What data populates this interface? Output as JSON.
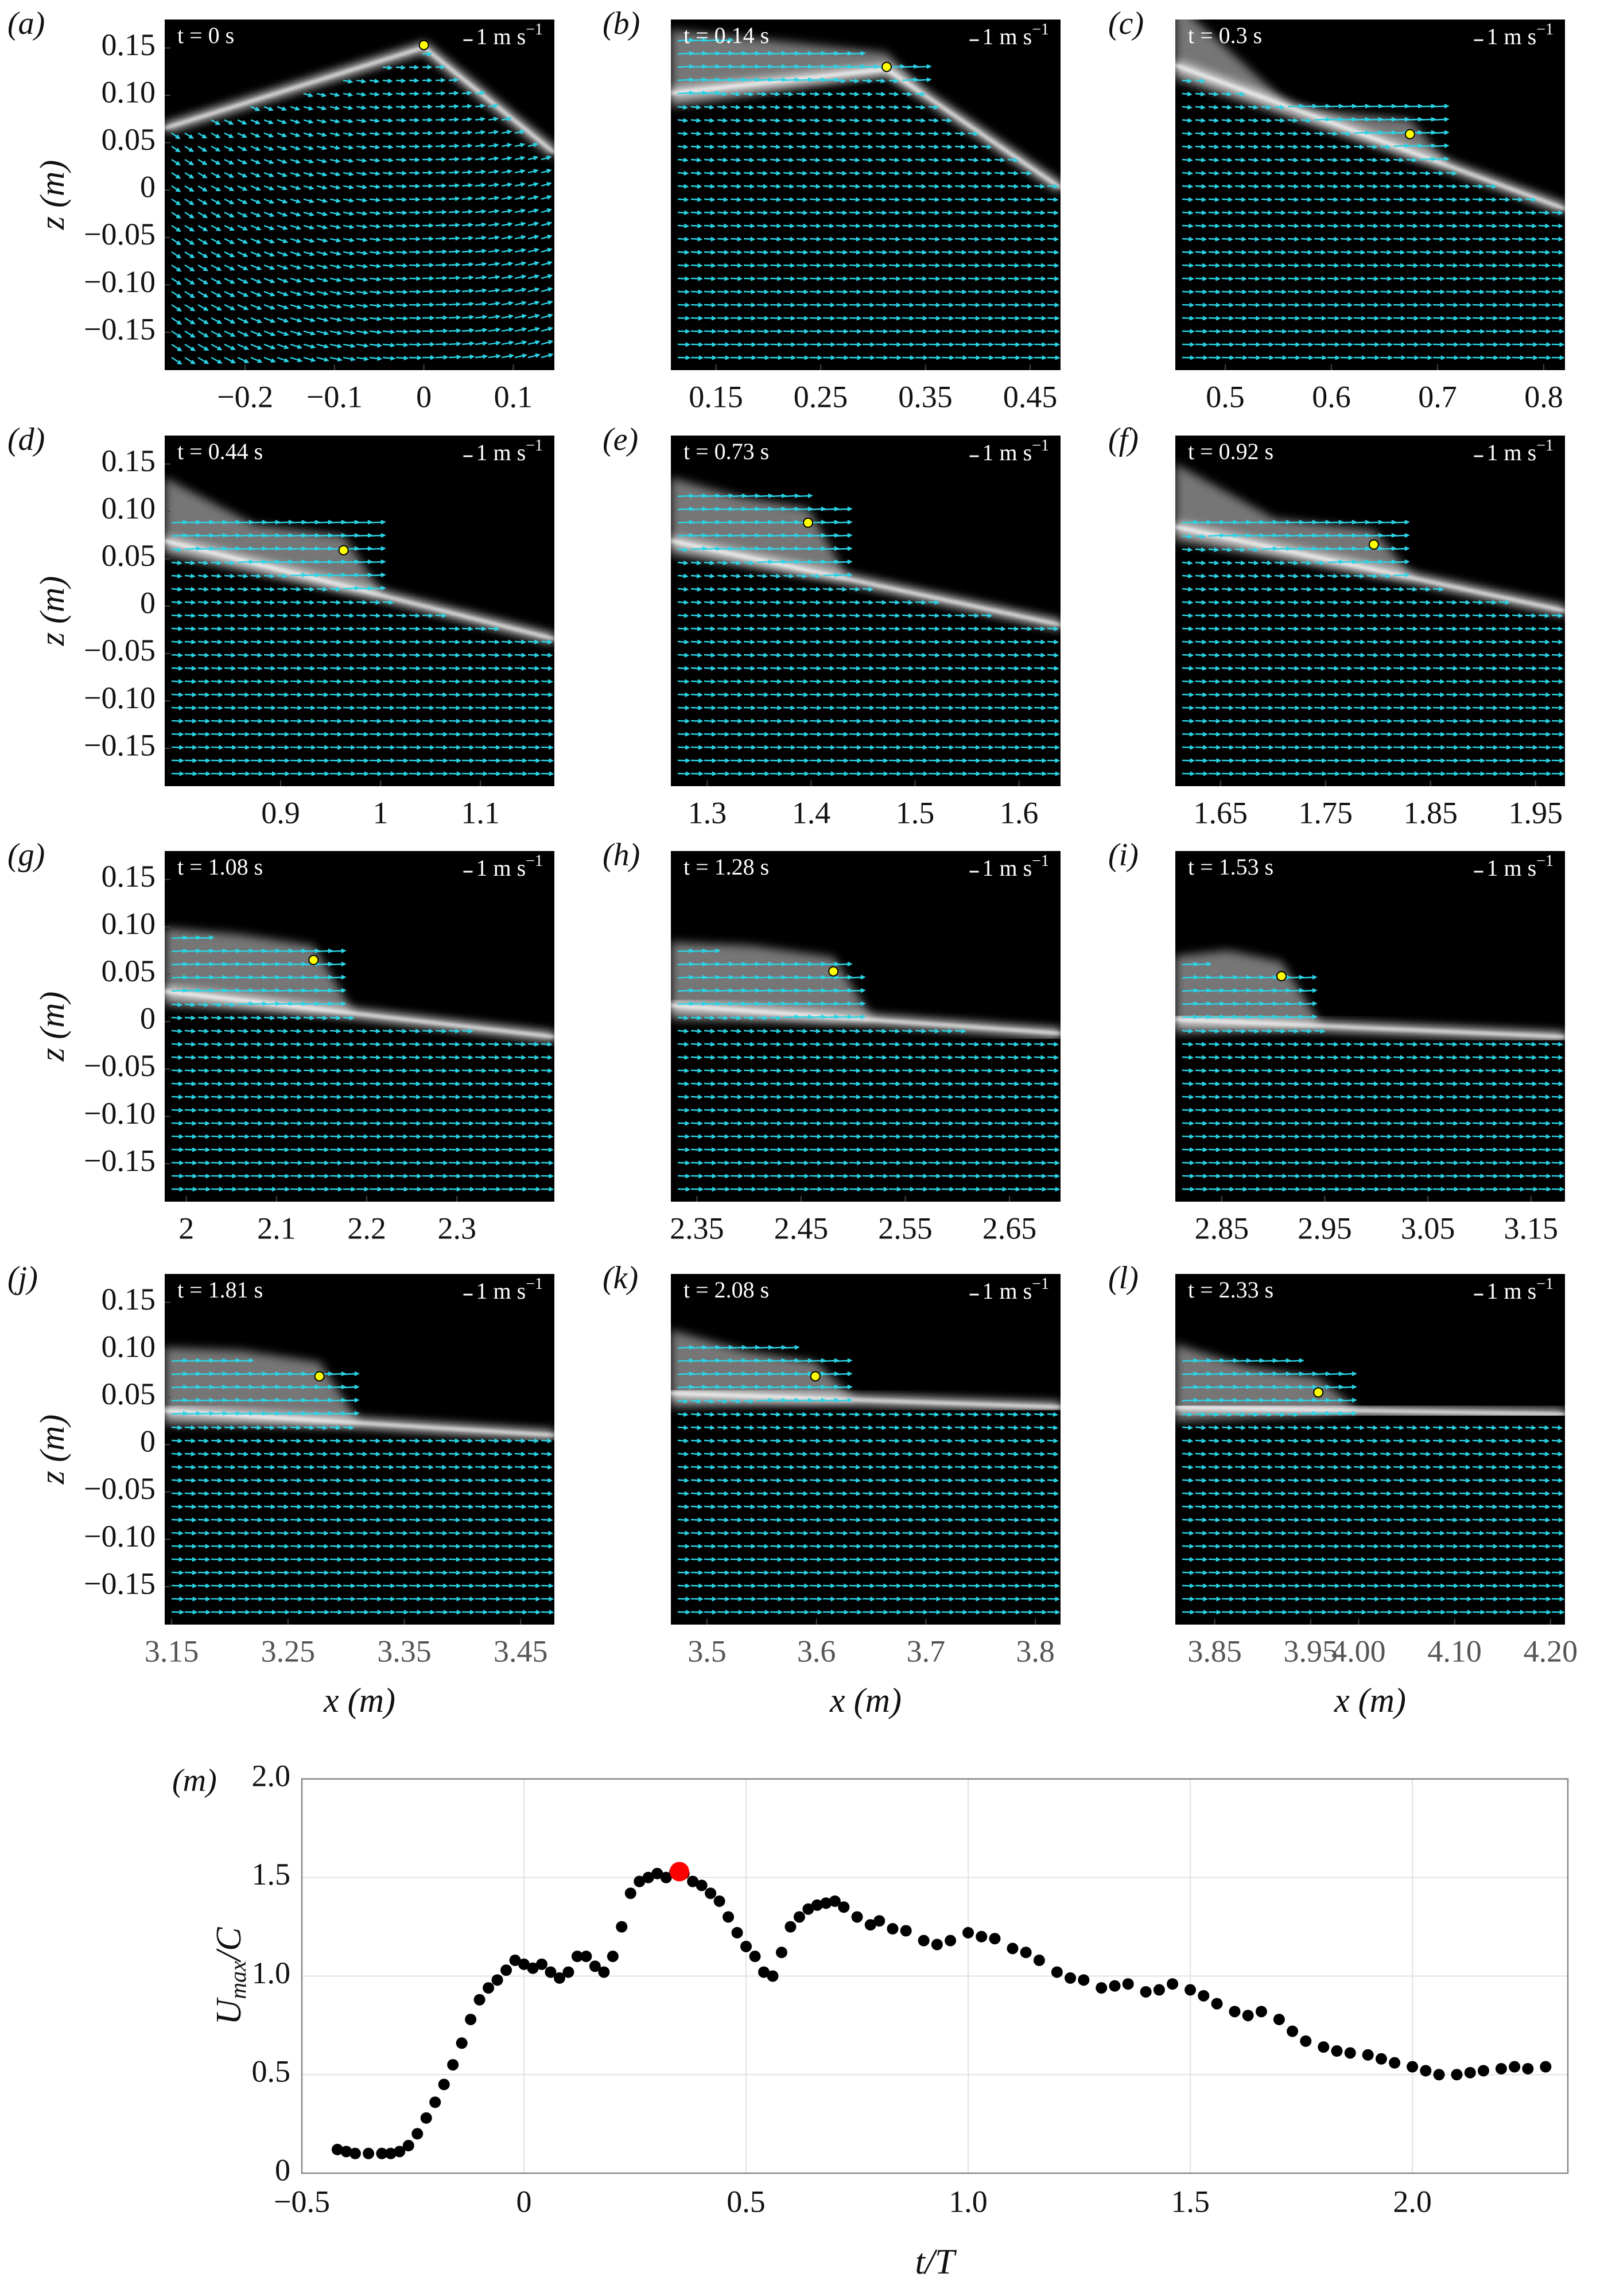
{
  "chart_data": [
    {
      "type": "image",
      "label": "(a)",
      "time": "t = 0 s",
      "scale_text": "1 m s",
      "scale_exp": "−1",
      "xlim": [
        -0.29,
        0.146
      ],
      "ylim": [
        -0.19,
        0.18
      ],
      "xticks": [
        {
          "value": -0.2,
          "label": "−0.2"
        },
        {
          "value": -0.1,
          "label": "−0.1"
        },
        0,
        0.1
      ],
      "yticks": [
        0.15,
        {
          "value": 0.1,
          "label": "0.10"
        },
        0.05,
        0,
        {
          "value": -0.05,
          "label": "−0.05"
        },
        {
          "value": -0.1,
          "label": "−0.10"
        },
        {
          "value": -0.15,
          "label": "−0.15"
        }
      ],
      "ylabel": "z (m)",
      "marker": {
        "x": 0.0,
        "z": 0.153,
        "color": "#ffff00"
      }
    },
    {
      "type": "image",
      "label": "(b)",
      "time": "t = 0.14 s",
      "scale_text": "1 m s",
      "scale_exp": "−1",
      "xlim": [
        0.107,
        0.479
      ],
      "ylim": [
        -0.19,
        0.18
      ],
      "xticks": [
        0.15,
        0.25,
        0.35,
        0.45
      ],
      "marker": {
        "x": 0.313,
        "z": 0.13,
        "color": "#ffff00"
      }
    },
    {
      "type": "image",
      "label": "(c)",
      "time": "t = 0.3 s",
      "scale_text": "1 m s",
      "scale_exp": "−1",
      "xlim": [
        0.453,
        0.82
      ],
      "ylim": [
        -0.19,
        0.18
      ],
      "xticks": [
        0.5,
        0.6,
        0.7,
        0.8
      ],
      "marker": {
        "x": 0.674,
        "z": 0.059,
        "color": "#ffff00"
      }
    },
    {
      "type": "image",
      "label": "(d)",
      "time": "t = 0.44 s",
      "scale_text": "1 m s",
      "scale_exp": "−1",
      "xlim": [
        0.784,
        1.174
      ],
      "ylim": [
        -0.19,
        0.18
      ],
      "xticks": [
        0.9,
        1,
        1.1
      ],
      "yticks": [
        0.15,
        {
          "value": 0.1,
          "label": "0.10"
        },
        0.05,
        0,
        {
          "value": -0.05,
          "label": "−0.05"
        },
        {
          "value": -0.1,
          "label": "−0.10"
        },
        {
          "value": -0.15,
          "label": "−0.15"
        }
      ],
      "ylabel": "z (m)",
      "marker": {
        "x": 0.963,
        "z": 0.059,
        "color": "#ffff00"
      }
    },
    {
      "type": "image",
      "label": "(e)",
      "time": "t = 0.73 s",
      "scale_text": "1 m s",
      "scale_exp": "−1",
      "xlim": [
        1.265,
        1.64
      ],
      "ylim": [
        -0.19,
        0.18
      ],
      "xticks": [
        1.3,
        1.4,
        1.5,
        1.6
      ],
      "marker": {
        "x": 1.397,
        "z": 0.088,
        "color": "#ffff00"
      }
    },
    {
      "type": "image",
      "label": "(f)",
      "time": "t = 0.92 s",
      "scale_text": "1 m s",
      "scale_exp": "−1",
      "xlim": [
        1.607,
        1.978
      ],
      "ylim": [
        -0.19,
        0.18
      ],
      "xticks": [
        1.65,
        1.75,
        1.85,
        1.95
      ],
      "marker": {
        "x": 1.796,
        "z": 0.065,
        "color": "#ffff00"
      }
    },
    {
      "type": "image",
      "label": "(g)",
      "time": "t = 1.08 s",
      "scale_text": "1 m s",
      "scale_exp": "−1",
      "xlim": [
        1.976,
        2.408
      ],
      "ylim": [
        -0.19,
        0.18
      ],
      "xticks": [
        2,
        2.1,
        2.2,
        2.3
      ],
      "yticks": [
        0.15,
        {
          "value": 0.1,
          "label": "0.10"
        },
        0.05,
        0,
        {
          "value": -0.05,
          "label": "−0.05"
        },
        {
          "value": -0.1,
          "label": "−0.10"
        },
        {
          "value": -0.15,
          "label": "−0.15"
        }
      ],
      "ylabel": "z (m)",
      "marker": {
        "x": 2.141,
        "z": 0.065,
        "color": "#ffff00"
      }
    },
    {
      "type": "image",
      "label": "(h)",
      "time": "t = 1.28 s",
      "scale_text": "1 m s",
      "scale_exp": "−1",
      "xlim": [
        2.325,
        2.699
      ],
      "ylim": [
        -0.19,
        0.18
      ],
      "xticks": [
        2.35,
        2.45,
        2.55,
        2.65
      ],
      "marker": {
        "x": 2.481,
        "z": 0.053,
        "color": "#ffff00"
      }
    },
    {
      "type": "image",
      "label": "(i)",
      "time": "t = 1.53 s",
      "scale_text": "1 m s",
      "scale_exp": "−1",
      "xlim": [
        2.805,
        3.183
      ],
      "ylim": [
        -0.19,
        0.18
      ],
      "xticks": [
        2.85,
        2.95,
        3.05,
        3.15
      ],
      "marker": {
        "x": 2.908,
        "z": 0.048,
        "color": "#ffff00"
      }
    },
    {
      "type": "image",
      "label": "(j)",
      "time": "t = 1.81 s",
      "scale_text": "1 m s",
      "scale_exp": "−1",
      "xlim": [
        3.144,
        3.479
      ],
      "ylim": [
        -0.19,
        0.18
      ],
      "xticks": [
        3.15,
        3.25,
        3.35,
        3.45
      ],
      "yticks": [
        0.15,
        {
          "value": 0.1,
          "label": "0.10"
        },
        0.05,
        0,
        {
          "value": -0.05,
          "label": "−0.05"
        },
        {
          "value": -0.1,
          "label": "−0.10"
        },
        {
          "value": -0.15,
          "label": "−0.15"
        }
      ],
      "ylabel": "z (m)",
      "xlabel": "x (m)",
      "marker": {
        "x": 3.277,
        "z": 0.072,
        "color": "#ffff00"
      }
    },
    {
      "type": "image",
      "label": "(k)",
      "time": "t = 2.08 s",
      "scale_text": "1 m s",
      "scale_exp": "−1",
      "xlim": [
        3.467,
        3.823
      ],
      "ylim": [
        -0.19,
        0.18
      ],
      "xticks": [
        3.5,
        3.6,
        3.7,
        3.8
      ],
      "xlabel": "x (m)",
      "marker": {
        "x": 3.599,
        "z": 0.072,
        "color": "#ffff00"
      }
    },
    {
      "type": "image",
      "label": "(l)",
      "time": "t = 2.33 s",
      "scale_text": "1 m s",
      "scale_exp": "−1",
      "xlim": [
        3.809,
        4.215
      ],
      "ylim": [
        -0.19,
        0.18
      ],
      "xticks": [
        3.85,
        3.95,
        {
          "value": 4,
          "label": "4.00"
        },
        {
          "value": 4.1,
          "label": "4.10"
        },
        {
          "value": 4.2,
          "label": "4.20"
        }
      ],
      "xlabel": "x (m)",
      "marker": {
        "x": 3.958,
        "z": 0.055,
        "color": "#ffff00"
      }
    },
    {
      "type": "scatter",
      "label": "(m)",
      "xlabel": "t/T",
      "ylabel_base": "U",
      "ylabel_sub": "max",
      "ylabel_rest": "/C",
      "xlim": [
        -0.5,
        2.35
      ],
      "ylim": [
        0,
        2
      ],
      "xticks": [
        {
          "value": -0.5,
          "label": "−0.5"
        },
        0,
        0.5,
        {
          "value": 1,
          "label": "1.0"
        },
        1.5,
        {
          "value": 2,
          "label": "2.0"
        }
      ],
      "yticks": [
        0,
        0.5,
        {
          "value": 1,
          "label": "1.0"
        },
        1.5,
        {
          "value": 2,
          "label": "2.0"
        }
      ],
      "grid": true,
      "color": "#000000",
      "x": [
        -0.42,
        -0.4,
        -0.38,
        -0.35,
        -0.32,
        -0.3,
        -0.28,
        -0.26,
        -0.24,
        -0.22,
        -0.2,
        -0.18,
        -0.16,
        -0.14,
        -0.12,
        -0.1,
        -0.08,
        -0.06,
        -0.04,
        -0.02,
        0,
        0.02,
        0.04,
        0.06,
        0.08,
        0.1,
        0.12,
        0.14,
        0.16,
        0.18,
        0.2,
        0.22,
        0.24,
        0.26,
        0.28,
        0.3,
        0.32,
        0.34,
        0.36,
        0.38,
        0.4,
        0.42,
        0.44,
        0.46,
        0.48,
        0.5,
        0.52,
        0.54,
        0.56,
        0.58,
        0.6,
        0.62,
        0.64,
        0.66,
        0.68,
        0.7,
        0.72,
        0.75,
        0.78,
        0.8,
        0.83,
        0.86,
        0.9,
        0.93,
        0.96,
        1.0,
        1.03,
        1.06,
        1.1,
        1.13,
        1.16,
        1.2,
        1.23,
        1.26,
        1.3,
        1.33,
        1.36,
        1.4,
        1.43,
        1.46,
        1.5,
        1.53,
        1.56,
        1.6,
        1.63,
        1.66,
        1.7,
        1.73,
        1.76,
        1.8,
        1.83,
        1.86,
        1.9,
        1.93,
        1.96,
        2.0,
        2.03,
        2.06,
        2.1,
        2.13,
        2.16,
        2.2,
        2.23,
        2.26,
        2.3
      ],
      "values": [
        0.12,
        0.11,
        0.1,
        0.1,
        0.1,
        0.1,
        0.11,
        0.14,
        0.2,
        0.28,
        0.36,
        0.45,
        0.55,
        0.66,
        0.78,
        0.88,
        0.94,
        0.98,
        1.03,
        1.08,
        1.06,
        1.04,
        1.06,
        1.02,
        0.99,
        1.02,
        1.1,
        1.1,
        1.05,
        1.02,
        1.1,
        1.25,
        1.42,
        1.48,
        1.5,
        1.52,
        1.5,
        1.53,
        1.52,
        1.48,
        1.46,
        1.42,
        1.38,
        1.3,
        1.22,
        1.15,
        1.1,
        1.02,
        1.0,
        1.12,
        1.25,
        1.3,
        1.34,
        1.36,
        1.37,
        1.38,
        1.35,
        1.3,
        1.26,
        1.28,
        1.24,
        1.23,
        1.18,
        1.16,
        1.18,
        1.22,
        1.2,
        1.19,
        1.14,
        1.12,
        1.08,
        1.02,
        0.99,
        0.98,
        0.94,
        0.95,
        0.96,
        0.92,
        0.93,
        0.96,
        0.93,
        0.9,
        0.86,
        0.82,
        0.8,
        0.82,
        0.78,
        0.72,
        0.67,
        0.64,
        0.62,
        0.61,
        0.6,
        0.58,
        0.56,
        0.54,
        0.52,
        0.5,
        0.5,
        0.51,
        0.52,
        0.53,
        0.54,
        0.53,
        0.54
      ],
      "highlight": {
        "x": 0.35,
        "value": 1.53,
        "color": "#ff0000"
      }
    }
  ]
}
